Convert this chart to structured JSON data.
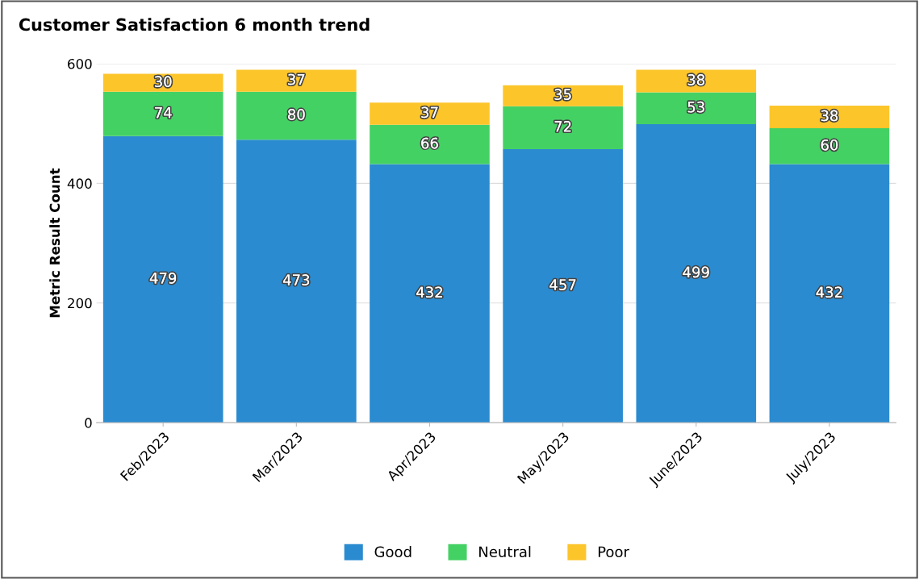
{
  "chart_data": {
    "type": "bar",
    "title": "Customer Satisfaction 6 month trend",
    "ylabel": "Metric Result Count",
    "categories": [
      "Feb/2023",
      "Mar/2023",
      "Apr/2023",
      "May/2023",
      "June/2023",
      "July/2023"
    ],
    "series": [
      {
        "name": "Good",
        "color": "#2a8bd0",
        "values": [
          479,
          473,
          432,
          457,
          499,
          432
        ]
      },
      {
        "name": "Neutral",
        "color": "#44d164",
        "values": [
          74,
          80,
          66,
          72,
          53,
          60
        ]
      },
      {
        "name": "Poor",
        "color": "#fcc52a",
        "values": [
          30,
          37,
          37,
          35,
          38,
          38
        ]
      }
    ],
    "stacked": true,
    "data_labels": true,
    "ylim": [
      0,
      600
    ],
    "yticks": [
      0,
      200,
      400,
      600
    ],
    "grid": "y",
    "legend": "bottom"
  }
}
